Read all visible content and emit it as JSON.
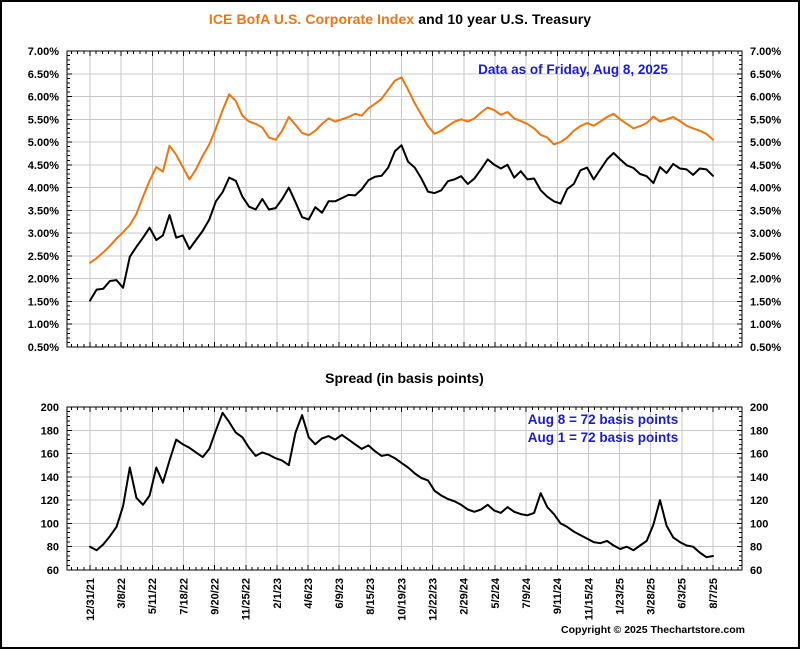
{
  "title": {
    "highlight": "ICE BofA U.S. Corporate Index",
    "rest": " and 10 year U.S. Treasury"
  },
  "footer": {
    "copyright": "Copyright © 2025 Thechartstore.com"
  },
  "colors": {
    "orange": "#EF750F",
    "blue": "#1B1BCE",
    "grid": "#C8C8C8",
    "axis": "#000000"
  },
  "x_tick_labels": [
    "12/31/21",
    "3/8/22",
    "5/11/22",
    "7/18/22",
    "9/20/22",
    "11/25/22",
    "2/1/23",
    "4/6/23",
    "6/9/23",
    "8/15/23",
    "10/19/23",
    "12/22/23",
    "2/29/24",
    "5/2/24",
    "7/9/24",
    "9/11/24",
    "11/15/24",
    "1/23/25",
    "3/28/25",
    "6/3/25",
    "8/7/25"
  ],
  "chart_data": [
    {
      "type": "line",
      "title": "ICE BofA U.S. Corporate Index and 10 year U.S. Treasury",
      "annotation": "Data as of Friday, Aug 8, 2025",
      "grid": true,
      "y_axis": {
        "min": 0.5,
        "max": 7.0,
        "step": 0.5,
        "unit": "%"
      },
      "y_tick_labels": [
        "7.00%",
        "6.50%",
        "6.00%",
        "5.50%",
        "5.00%",
        "4.50%",
        "4.00%",
        "3.50%",
        "3.00%",
        "2.50%",
        "2.00%",
        "1.50%",
        "1.00%",
        "0.50%"
      ],
      "x_range": [
        "12/31/21",
        "8/7/25"
      ],
      "series": [
        {
          "name": "ICE BofA U.S. Corporate Index",
          "color": "#EF750F",
          "values": [
            2.35,
            2.45,
            2.58,
            2.72,
            2.88,
            3.02,
            3.18,
            3.42,
            3.8,
            4.15,
            4.45,
            4.35,
            4.92,
            4.72,
            4.45,
            4.18,
            4.4,
            4.7,
            4.95,
            5.3,
            5.7,
            6.05,
            5.9,
            5.58,
            5.45,
            5.4,
            5.32,
            5.1,
            5.05,
            5.25,
            5.55,
            5.38,
            5.2,
            5.15,
            5.25,
            5.4,
            5.52,
            5.45,
            5.5,
            5.55,
            5.62,
            5.58,
            5.74,
            5.84,
            5.95,
            6.15,
            6.35,
            6.42,
            6.15,
            5.85,
            5.6,
            5.35,
            5.18,
            5.25,
            5.35,
            5.45,
            5.5,
            5.45,
            5.52,
            5.65,
            5.76,
            5.7,
            5.6,
            5.66,
            5.52,
            5.46,
            5.4,
            5.3,
            5.16,
            5.1,
            4.95,
            5.0,
            5.1,
            5.25,
            5.35,
            5.42,
            5.36,
            5.45,
            5.55,
            5.62,
            5.5,
            5.4,
            5.3,
            5.35,
            5.42,
            5.56,
            5.45,
            5.5,
            5.55,
            5.46,
            5.36,
            5.3,
            5.25,
            5.18,
            5.05
          ]
        },
        {
          "name": "10 year U.S. Treasury",
          "color": "#000000",
          "values": [
            1.52,
            1.76,
            1.78,
            1.95,
            1.97,
            1.8,
            2.48,
            2.7,
            2.9,
            3.12,
            2.85,
            2.95,
            3.4,
            2.9,
            2.95,
            2.65,
            2.85,
            3.05,
            3.3,
            3.7,
            3.9,
            4.22,
            4.15,
            3.8,
            3.58,
            3.52,
            3.75,
            3.52,
            3.55,
            3.75,
            4.0,
            3.68,
            3.35,
            3.3,
            3.57,
            3.45,
            3.7,
            3.7,
            3.77,
            3.84,
            3.83,
            3.96,
            4.16,
            4.24,
            4.26,
            4.44,
            4.8,
            4.93,
            4.57,
            4.44,
            4.2,
            3.91,
            3.88,
            3.94,
            4.14,
            4.18,
            4.25,
            4.08,
            4.2,
            4.4,
            4.62,
            4.5,
            4.42,
            4.5,
            4.22,
            4.36,
            4.18,
            4.2,
            3.94,
            3.8,
            3.7,
            3.65,
            3.97,
            4.08,
            4.38,
            4.44,
            4.18,
            4.4,
            4.62,
            4.76,
            4.62,
            4.49,
            4.43,
            4.3,
            4.25,
            4.1,
            4.45,
            4.32,
            4.52,
            4.42,
            4.4,
            4.28,
            4.42,
            4.4,
            4.26
          ]
        }
      ]
    },
    {
      "type": "line",
      "title": "Spread (in basis points)",
      "annotations": [
        "Aug 8 = 72 basis points",
        "Aug 1 = 72 basis points"
      ],
      "grid": true,
      "y_axis": {
        "min": 60,
        "max": 200,
        "step": 20,
        "unit": "bp"
      },
      "y_tick_labels": [
        "200",
        "180",
        "160",
        "140",
        "120",
        "100",
        "80",
        "60"
      ],
      "x_range": [
        "12/31/21",
        "8/7/25"
      ],
      "series": [
        {
          "name": "Spread",
          "color": "#000000",
          "values": [
            80,
            77,
            82,
            89,
            97,
            115,
            148,
            122,
            116,
            124,
            148,
            135,
            154,
            172,
            168,
            165,
            161,
            157,
            164,
            180,
            195,
            187,
            178,
            174,
            165,
            158,
            161,
            159,
            156,
            154,
            150,
            178,
            193,
            174,
            168,
            173,
            175,
            172,
            176,
            172,
            168,
            164,
            167,
            162,
            158,
            159,
            156,
            152,
            148,
            143,
            139,
            137,
            128,
            124,
            121,
            119,
            116,
            112,
            110,
            112,
            116,
            111,
            109,
            114,
            110,
            108,
            107,
            109,
            126,
            114,
            108,
            100,
            97,
            93,
            90,
            87,
            84,
            83,
            85,
            81,
            78,
            80,
            77,
            81,
            85,
            99,
            120,
            98,
            88,
            84,
            81,
            80,
            75,
            71,
            72
          ]
        }
      ]
    }
  ]
}
